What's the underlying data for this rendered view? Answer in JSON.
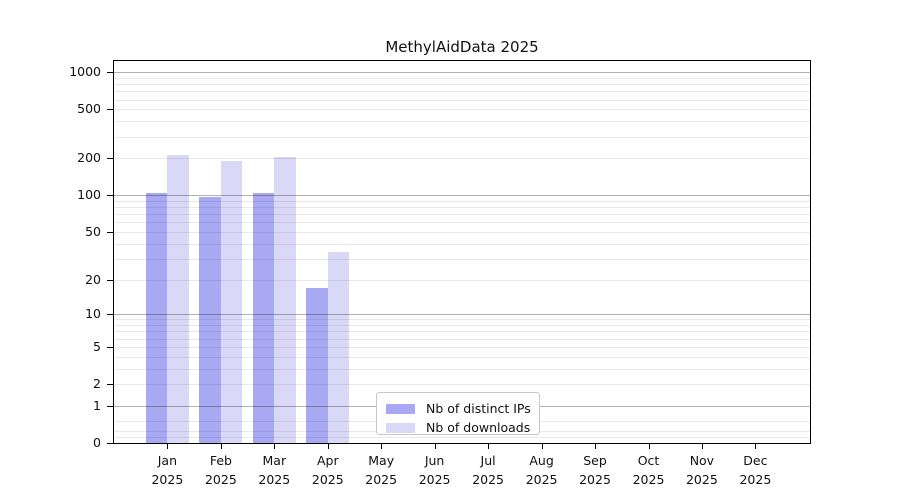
{
  "title": "MethylAidData 2025",
  "chart_data": {
    "type": "bar",
    "title": "MethylAidData 2025",
    "x_categories": [
      "Jan 2025",
      "Feb 2025",
      "Mar 2025",
      "Apr 2025",
      "May 2025",
      "Jun 2025",
      "Jul 2025",
      "Aug 2025",
      "Sep 2025",
      "Oct 2025",
      "Nov 2025",
      "Dec 2025"
    ],
    "series": [
      {
        "name": "Nb of distinct IPs",
        "color": "#a9a9f3",
        "values": [
          105,
          96,
          105,
          17,
          null,
          null,
          null,
          null,
          null,
          null,
          null,
          null
        ]
      },
      {
        "name": "Nb of downloads",
        "color": "#d9d9f7",
        "values": [
          215,
          190,
          206,
          34,
          null,
          null,
          null,
          null,
          null,
          null,
          null,
          null
        ]
      }
    ],
    "y_ticks": [
      1000,
      500,
      200,
      100,
      50,
      20,
      10,
      5,
      2,
      1,
      0
    ],
    "y_scale": "log(1+x)",
    "y_range": [
      0,
      1260
    ],
    "grid": "horizontal, major at 1/10/100/1000, log minor lines",
    "legend_position": "lower center",
    "bar_colors": {
      "distinct_ips": "#a9a9f3",
      "downloads": "#d9d9f7"
    }
  }
}
